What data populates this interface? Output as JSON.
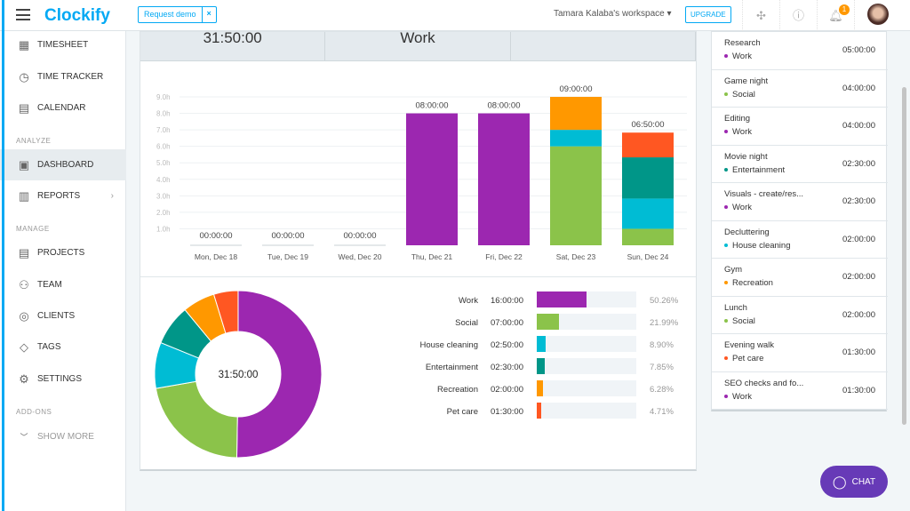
{
  "topbar": {
    "logo": "Clockify",
    "request_demo": "Request demo",
    "close": "×",
    "workspace": "Tamara Kalaba's workspace",
    "upgrade": "UPGRADE",
    "notifications": "1"
  },
  "sidebar": {
    "items": [
      {
        "label": "TIMESHEET",
        "icon": "timesheet-icon"
      },
      {
        "label": "TIME TRACKER",
        "icon": "clock-icon"
      },
      {
        "label": "CALENDAR",
        "icon": "calendar-icon"
      },
      {
        "label": "DASHBOARD",
        "icon": "dashboard-icon",
        "active": true
      },
      {
        "label": "REPORTS",
        "icon": "reports-icon"
      },
      {
        "label": "PROJECTS",
        "icon": "projects-icon"
      },
      {
        "label": "TEAM",
        "icon": "team-icon"
      },
      {
        "label": "CLIENTS",
        "icon": "clients-icon"
      },
      {
        "label": "TAGS",
        "icon": "tag-icon"
      },
      {
        "label": "SETTINGS",
        "icon": "gear-icon"
      }
    ],
    "sections": {
      "analyze": "ANALYZE",
      "manage": "MANAGE",
      "addons": "ADD-ONS"
    },
    "show_more": "SHOW MORE"
  },
  "stats": {
    "total": "31:50:00",
    "top_project": "Work"
  },
  "chart_data": [
    {
      "type": "bar",
      "stacked": true,
      "categories": [
        "Mon, Dec 18",
        "Tue, Dec 19",
        "Wed, Dec 20",
        "Thu, Dec 21",
        "Fri, Dec 22",
        "Sat, Dec 23",
        "Sun, Dec 24"
      ],
      "totals": [
        "00:00:00",
        "00:00:00",
        "00:00:00",
        "08:00:00",
        "08:00:00",
        "09:00:00",
        "06:50:00"
      ],
      "yticks": [
        "1.0h",
        "2.0h",
        "3.0h",
        "4.0h",
        "5.0h",
        "6.0h",
        "7.0h",
        "8.0h",
        "9.0h"
      ],
      "ylim": [
        0,
        9
      ],
      "grid": true,
      "series": [
        {
          "name": "Work",
          "color": "#9c27b0",
          "values": [
            0,
            0,
            0,
            8,
            8,
            0,
            0
          ]
        },
        {
          "name": "Social",
          "color": "#8bc34a",
          "values": [
            0,
            0,
            0,
            0,
            0,
            6,
            1
          ]
        },
        {
          "name": "House cleaning",
          "color": "#00bcd4",
          "values": [
            0,
            0,
            0,
            0,
            0,
            1,
            1.833
          ]
        },
        {
          "name": "Entertainment",
          "color": "#009688",
          "values": [
            0,
            0,
            0,
            0,
            0,
            0,
            2.5
          ]
        },
        {
          "name": "Recreation",
          "color": "#ff9800",
          "values": [
            0,
            0,
            0,
            0,
            0,
            2,
            0
          ]
        },
        {
          "name": "Pet care",
          "color": "#ff5722",
          "values": [
            0,
            0,
            0,
            0,
            0,
            0,
            1.5
          ]
        }
      ]
    },
    {
      "type": "pie",
      "donut": true,
      "center_label": "31:50:00",
      "slices": [
        {
          "name": "Work",
          "time": "16:00:00",
          "percent": 50.26,
          "percent_label": "50.26%",
          "color": "#9c27b0"
        },
        {
          "name": "Social",
          "time": "07:00:00",
          "percent": 21.99,
          "percent_label": "21.99%",
          "color": "#8bc34a"
        },
        {
          "name": "House cleaning",
          "time": "02:50:00",
          "percent": 8.9,
          "percent_label": "8.90%",
          "color": "#00bcd4"
        },
        {
          "name": "Entertainment",
          "time": "02:30:00",
          "percent": 7.85,
          "percent_label": "7.85%",
          "color": "#009688"
        },
        {
          "name": "Recreation",
          "time": "02:00:00",
          "percent": 6.28,
          "percent_label": "6.28%",
          "color": "#ff9800"
        },
        {
          "name": "Pet care",
          "time": "01:30:00",
          "percent": 4.71,
          "percent_label": "4.71%",
          "color": "#ff5722"
        }
      ]
    }
  ],
  "activities": [
    {
      "name": "Research",
      "project": "Work",
      "color": "#9c27b0",
      "time": "05:00:00"
    },
    {
      "name": "Game night",
      "project": "Social",
      "color": "#8bc34a",
      "time": "04:00:00"
    },
    {
      "name": "Editing",
      "project": "Work",
      "color": "#9c27b0",
      "time": "04:00:00"
    },
    {
      "name": "Movie night",
      "project": "Entertainment",
      "color": "#009688",
      "time": "02:30:00"
    },
    {
      "name": "Visuals - create/res...",
      "project": "Work",
      "color": "#9c27b0",
      "time": "02:30:00"
    },
    {
      "name": "Decluttering",
      "project": "House cleaning",
      "color": "#00bcd4",
      "time": "02:00:00"
    },
    {
      "name": "Gym",
      "project": "Recreation",
      "color": "#ff9800",
      "time": "02:00:00"
    },
    {
      "name": "Lunch",
      "project": "Social",
      "color": "#8bc34a",
      "time": "02:00:00"
    },
    {
      "name": "Evening walk",
      "project": "Pet care",
      "color": "#ff5722",
      "time": "01:30:00"
    },
    {
      "name": "SEO checks and fo...",
      "project": "Work",
      "color": "#9c27b0",
      "time": "01:30:00"
    }
  ],
  "chat": "CHAT"
}
